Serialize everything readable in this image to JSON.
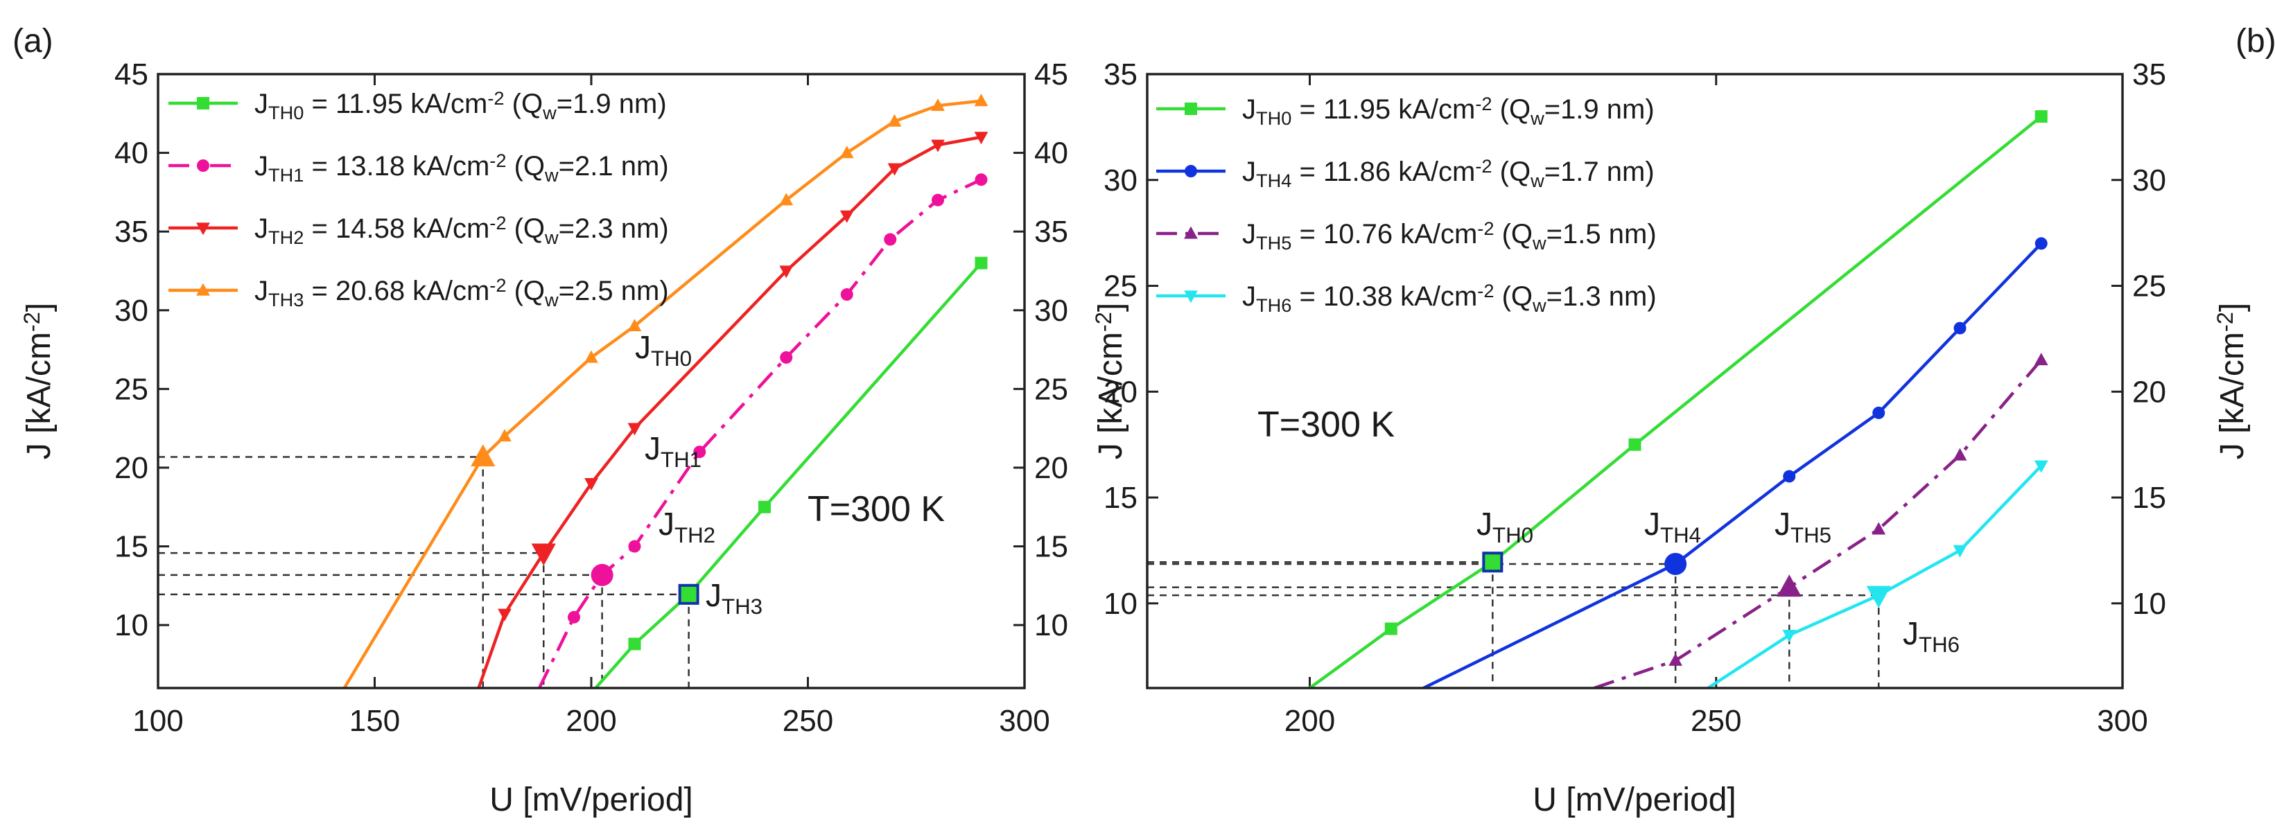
{
  "figure": {
    "panels": [
      {
        "label": "(a)",
        "temperature_label": "T=300 K",
        "legend": [
          {
            "prefix": "J",
            "sub": "TH0",
            "mid": " = 11.95 kA/cm",
            "sup": "-2",
            "tail1": " (Q",
            "tail_sub": "w",
            "tail2": "=1.9 nm)"
          },
          {
            "prefix": "J",
            "sub": "TH1",
            "mid": " = 13.18 kA/cm",
            "sup": "-2",
            "tail1": " (Q",
            "tail_sub": "w",
            "tail2": "=2.1 nm)"
          },
          {
            "prefix": "J",
            "sub": "TH2",
            "mid": " = 14.58 kA/cm",
            "sup": "-2",
            "tail1": " (Q",
            "tail_sub": "w",
            "tail2": "=2.3 nm)"
          },
          {
            "prefix": "J",
            "sub": "TH3",
            "mid": " = 20.68 kA/cm",
            "sup": "-2",
            "tail1": " (Q",
            "tail_sub": "w",
            "tail2": "=2.5 nm)"
          }
        ],
        "annotations": [
          {
            "main": "J",
            "sub": "TH3"
          },
          {
            "main": "J",
            "sub": "TH2"
          },
          {
            "main": "J",
            "sub": "TH1"
          },
          {
            "main": "J",
            "sub": "TH0"
          }
        ],
        "xlabel": "U  [mV/period]",
        "ylabel_left": {
          "main": "J   [kA/cm",
          "sup": "-2",
          "end": "]"
        },
        "ylabel_right": ""
      },
      {
        "label": "(b)",
        "temperature_label": "T=300 K",
        "legend": [
          {
            "prefix": "J",
            "sub": "TH0",
            "mid": " = 11.95 kA/cm",
            "sup": "-2",
            "tail1": " (Q",
            "tail_sub": "w",
            "tail2": "=1.9 nm)"
          },
          {
            "prefix": "J",
            "sub": "TH4",
            "mid": " = 11.86 kA/cm",
            "sup": "-2",
            "tail1": " (Q",
            "tail_sub": "w",
            "tail2": "=1.7 nm)"
          },
          {
            "prefix": "J",
            "sub": "TH5",
            "mid": " = 10.76 kA/cm",
            "sup": "-2",
            "tail1": " (Q",
            "tail_sub": "w",
            "tail2": "=1.5 nm)"
          },
          {
            "prefix": "J",
            "sub": "TH6",
            "mid": " = 10.38 kA/cm",
            "sup": "-2",
            "tail1": " (Q",
            "tail_sub": "w",
            "tail2": "=1.3 nm)"
          }
        ],
        "annotations": [
          {
            "main": "J",
            "sub": "TH0"
          },
          {
            "main": "J",
            "sub": "TH4"
          },
          {
            "main": "J",
            "sub": "TH5"
          },
          {
            "main": "J",
            "sub": "TH6"
          }
        ],
        "xlabel": "U  [mV/period]",
        "ylabel_left": {
          "main": "J   [kA/cm",
          "sup": "-2",
          "end": "]"
        },
        "ylabel_right": {
          "main": "J   [kA/cm",
          "sup": "-2",
          "end": "]"
        }
      }
    ]
  },
  "chart_data": [
    {
      "type": "line",
      "panel": "(a)",
      "xlim": [
        100,
        300
      ],
      "ylim": [
        6,
        45
      ],
      "xticks": [
        100,
        150,
        200,
        250,
        300
      ],
      "yticks": [
        10,
        15,
        20,
        25,
        30,
        35,
        40,
        45
      ],
      "grid": false,
      "legend_position": "top-left",
      "series": [
        {
          "name": "JTH0 = 11.95 kA/cm-2 (Qw=1.9 nm)",
          "color": "#33dd33",
          "marker": "square",
          "dash": "solid",
          "x": [
            201,
            210,
            222.5,
            240,
            290
          ],
          "y": [
            6,
            8.8,
            11.95,
            17.5,
            33
          ]
        },
        {
          "name": "JTH1 = 13.18 kA/cm-2 (Qw=2.1 nm)",
          "color": "#ee1199",
          "marker": "circle",
          "dash": "dashdot",
          "x": [
            188,
            196,
            202.5,
            210,
            225,
            245,
            259,
            269,
            280,
            290
          ],
          "y": [
            6,
            10.5,
            13.18,
            15,
            21,
            27,
            31,
            34.5,
            37,
            38.3
          ]
        },
        {
          "name": "JTH2 = 14.58 kA/cm-2 (Qw=2.3 nm)",
          "color": "#ee2222",
          "marker": "triangle-down",
          "dash": "solid",
          "x": [
            174,
            180,
            189,
            200,
            210,
            245,
            259,
            270,
            280,
            290
          ],
          "y": [
            6,
            10.7,
            14.58,
            19,
            22.5,
            32.5,
            36,
            39,
            40.5,
            41
          ]
        },
        {
          "name": "JTH3 = 20.68 kA/cm-2 (Qw=2.5 nm)",
          "color": "#ff8c1a",
          "marker": "triangle-up",
          "dash": "solid",
          "x": [
            143,
            175,
            180,
            200,
            210,
            245,
            259,
            270,
            280,
            290
          ],
          "y": [
            6,
            20.68,
            22,
            27,
            29,
            37,
            40,
            42,
            43,
            43.3
          ]
        }
      ],
      "threshold_points": [
        {
          "label": "JTH0",
          "x": 222.5,
          "y": 11.95
        },
        {
          "label": "JTH1",
          "x": 202.5,
          "y": 13.18
        },
        {
          "label": "JTH2",
          "x": 189,
          "y": 14.58
        },
        {
          "label": "JTH3",
          "x": 175,
          "y": 20.68
        }
      ]
    },
    {
      "type": "line",
      "panel": "(b)",
      "xlim": [
        180,
        300
      ],
      "ylim": [
        6,
        35
      ],
      "xticks": [
        200,
        250,
        300
      ],
      "yticks": [
        10,
        15,
        20,
        25,
        30,
        35
      ],
      "grid": false,
      "legend_position": "top-left",
      "series": [
        {
          "name": "JTH0 = 11.95 kA/cm-2 (Qw=1.9 nm)",
          "color": "#33dd33",
          "marker": "square",
          "dash": "solid",
          "x": [
            200,
            210,
            222.5,
            240,
            290
          ],
          "y": [
            6,
            8.8,
            11.95,
            17.5,
            33
          ]
        },
        {
          "name": "JTH4 = 11.86 kA/cm-2 (Qw=1.7 nm)",
          "color": "#1133dd",
          "marker": "circle",
          "dash": "solid",
          "x": [
            214,
            245,
            259,
            270,
            280,
            290
          ],
          "y": [
            6,
            11.86,
            16,
            19,
            23,
            27
          ]
        },
        {
          "name": "JTH5 = 10.76 kA/cm-2 (Qw=1.5 nm)",
          "color": "#882288",
          "marker": "triangle-up",
          "dash": "dashdot",
          "x": [
            235,
            245,
            259,
            270,
            280,
            290
          ],
          "y": [
            6,
            7.3,
            10.76,
            13.5,
            17,
            21.5
          ]
        },
        {
          "name": "JTH6 = 10.38 kA/cm-2 (Qw=1.3 nm)",
          "color": "#22e5f0",
          "marker": "triangle-down",
          "dash": "solid",
          "x": [
            249,
            259,
            270,
            280,
            290
          ],
          "y": [
            6,
            8.5,
            10.38,
            12.5,
            16.5
          ]
        }
      ],
      "threshold_points": [
        {
          "label": "JTH0",
          "x": 222.5,
          "y": 11.95
        },
        {
          "label": "JTH4",
          "x": 245,
          "y": 11.86
        },
        {
          "label": "JTH5",
          "x": 259,
          "y": 10.76
        },
        {
          "label": "JTH6",
          "x": 270,
          "y": 10.38
        }
      ]
    }
  ]
}
